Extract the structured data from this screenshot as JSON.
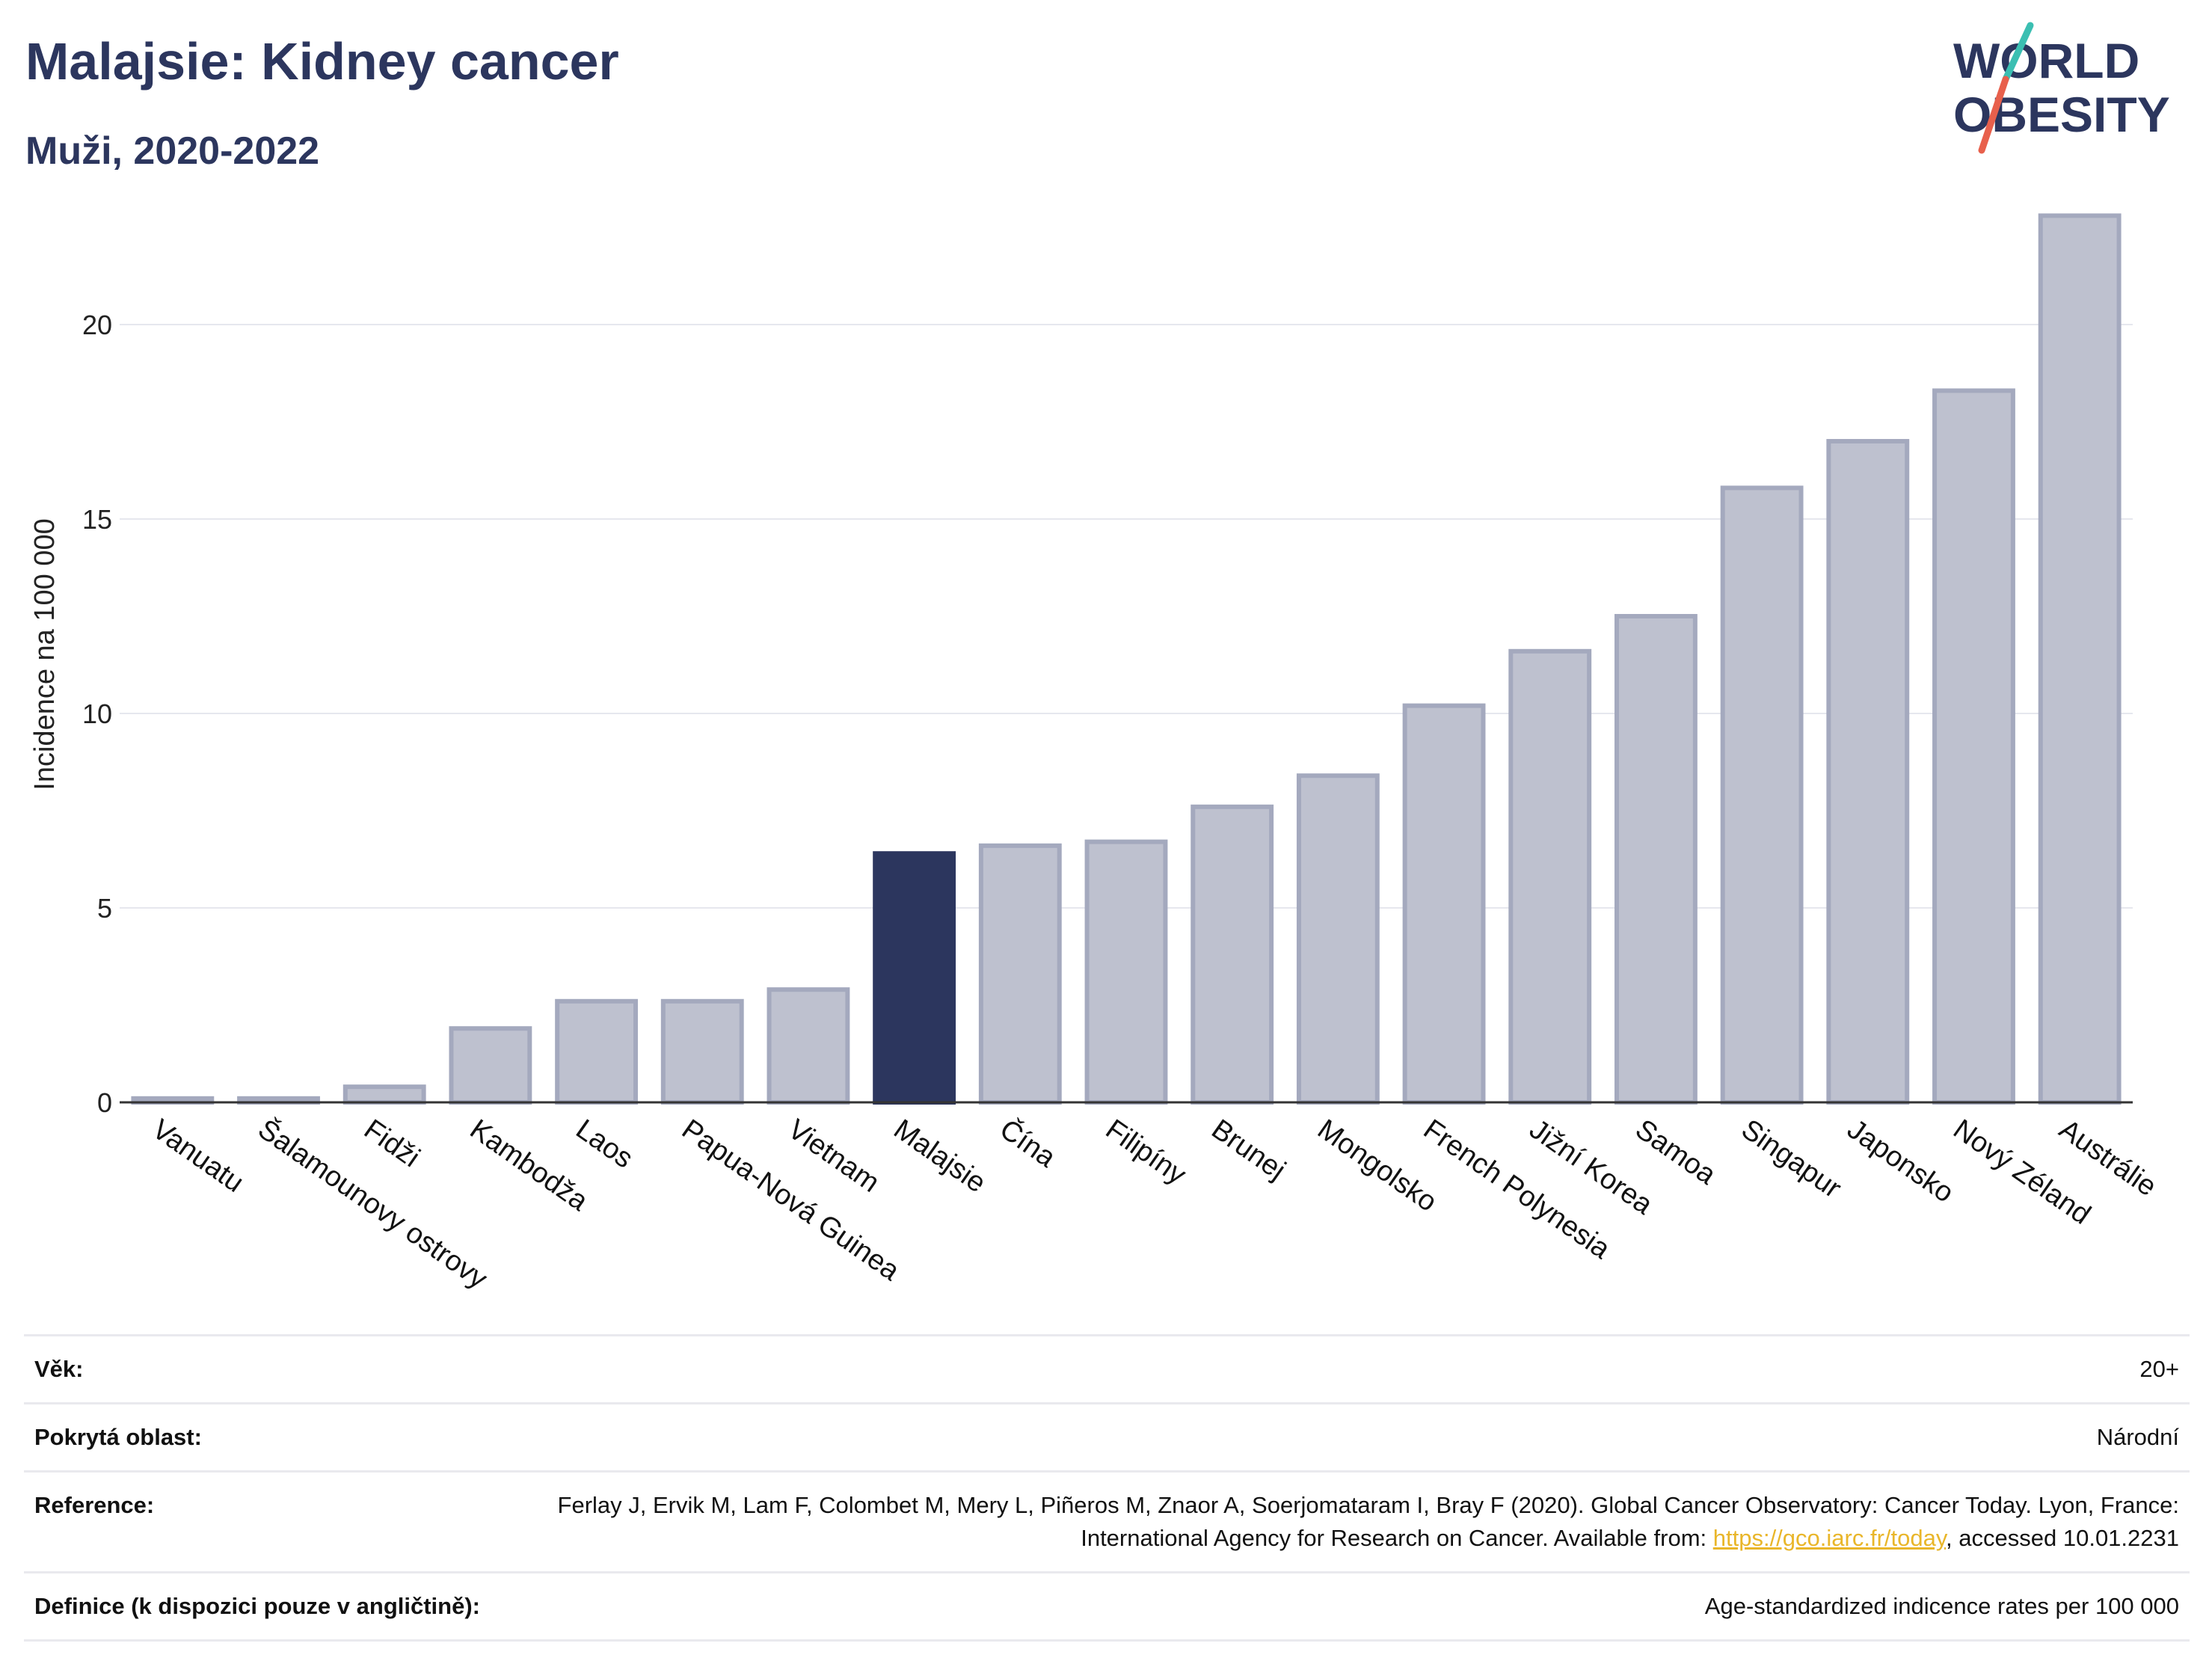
{
  "header": {
    "title": "Malajsie: Kidney cancer",
    "subtitle": "Muži, 2020-2022"
  },
  "logo": {
    "line1": "WORLD",
    "line2": "OBESITY"
  },
  "colors": {
    "highlight": "#2c365e",
    "bar": "#bec1cf",
    "bar_stroke": "#a4a9be",
    "grid": "#e6e7ee",
    "logo_text": "#2c365e",
    "logo_slash_teal": "#3bbfb2",
    "logo_slash_red": "#e8604c"
  },
  "chart_data": {
    "type": "bar",
    "ylabel": "Incidence na 100 000",
    "ylim": [
      0,
      24
    ],
    "yticks": [
      0,
      5,
      10,
      15,
      20
    ],
    "grid": true,
    "highlight": "Malajsie",
    "categories": [
      "Vanuatu",
      "Šalamounovy ostrovy",
      "Fidži",
      "Kambodža",
      "Laos",
      "Papua-Nová Guinea",
      "Vietnam",
      "Malajsie",
      "Čína",
      "Filipíny",
      "Brunej",
      "Mongolsko",
      "French Polynesia",
      "Jižní Korea",
      "Samoa",
      "Singapur",
      "Japonsko",
      "Nový Zéland",
      "Austrálie"
    ],
    "values": [
      0.1,
      0.1,
      0.4,
      1.9,
      2.6,
      2.6,
      2.9,
      6.4,
      6.6,
      6.7,
      7.6,
      8.4,
      10.2,
      11.6,
      12.5,
      15.8,
      17.0,
      18.3,
      22.8
    ]
  },
  "meta": {
    "rows": [
      {
        "label": "Věk:",
        "value": "20+"
      },
      {
        "label": "Pokrytá oblast:",
        "value": "Národní"
      },
      {
        "label": "Reference:",
        "value_pre": "Ferlay J, Ervik M, Lam F, Colombet M, Mery L, Piñeros M, Znaor A, Soerjomataram I, Bray F (2020). Global Cancer Observatory: Cancer Today. Lyon, France: International Agency for Research on Cancer. Available from: ",
        "link": "https://gco.iarc.fr/today",
        "value_post": ", accessed 10.01.2231"
      },
      {
        "label": "Definice (k dispozici pouze v angličtině):",
        "value": "Age-standardized indicence rates per 100 000"
      }
    ]
  }
}
